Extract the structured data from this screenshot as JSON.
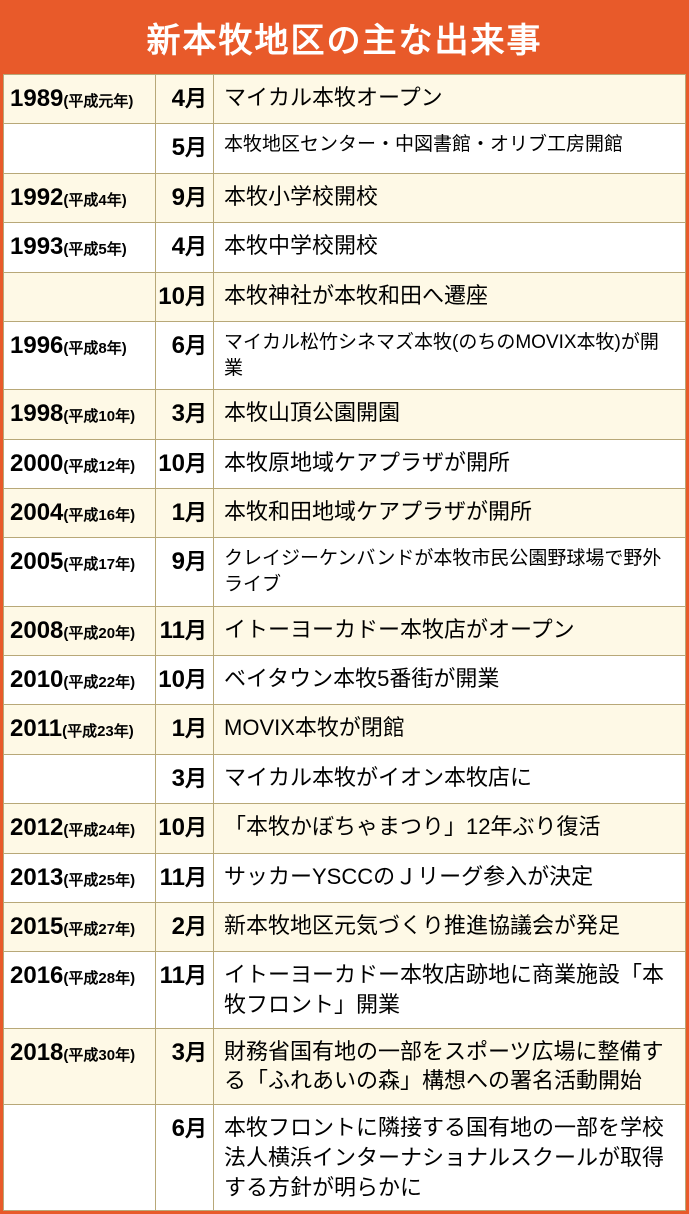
{
  "title": "新本牧地区の主な出来事",
  "colors": {
    "accent": "#e85a2a",
    "alt_row": "#fef9e6",
    "border": "#b8a878",
    "white": "#ffffff"
  },
  "rows": [
    {
      "western": "1989",
      "era": "(平成元年)",
      "month": "4",
      "event": "マイカル本牧オープン"
    },
    {
      "western": "",
      "era": "",
      "month": "5",
      "event": "本牧地区センター・中図書館・オリブ工房開館",
      "small": true
    },
    {
      "western": "1992",
      "era": "(平成4年)",
      "month": "9",
      "event": "本牧小学校開校"
    },
    {
      "western": "1993",
      "era": "(平成5年)",
      "month": "4",
      "event": "本牧中学校開校"
    },
    {
      "western": "",
      "era": "",
      "month": "10",
      "event": "本牧神社が本牧和田へ遷座"
    },
    {
      "western": "1996",
      "era": "(平成8年)",
      "month": "6",
      "event": "マイカル松竹シネマズ本牧(のちのMOVIX本牧)が開業",
      "small": true
    },
    {
      "western": "1998",
      "era": "(平成10年)",
      "month": "3",
      "event": "本牧山頂公園開園"
    },
    {
      "western": "2000",
      "era": "(平成12年)",
      "month": "10",
      "event": "本牧原地域ケアプラザが開所"
    },
    {
      "western": "2004",
      "era": "(平成16年)",
      "month": "1",
      "event": "本牧和田地域ケアプラザが開所"
    },
    {
      "western": "2005",
      "era": "(平成17年)",
      "month": "9",
      "event": "クレイジーケンバンドが本牧市民公園野球場で野外ライブ",
      "small": true
    },
    {
      "western": "2008",
      "era": "(平成20年)",
      "month": "11",
      "event": "イトーヨーカドー本牧店がオープン"
    },
    {
      "western": "2010",
      "era": "(平成22年)",
      "month": "10",
      "event": "ベイタウン本牧5番街が開業"
    },
    {
      "western": "2011",
      "era": "(平成23年)",
      "month": "1",
      "event": "MOVIX本牧が閉館"
    },
    {
      "western": "",
      "era": "",
      "month": "3",
      "event": "マイカル本牧がイオン本牧店に"
    },
    {
      "western": "2012",
      "era": "(平成24年)",
      "month": "10",
      "event": "「本牧かぼちゃまつり」12年ぶり復活"
    },
    {
      "western": "2013",
      "era": "(平成25年)",
      "month": "11",
      "event": "サッカーYSCCのＪリーグ参入が決定"
    },
    {
      "western": "2015",
      "era": "(平成27年)",
      "month": "2",
      "event": "新本牧地区元気づくり推進協議会が発足"
    },
    {
      "western": "2016",
      "era": "(平成28年)",
      "month": "11",
      "event": "イトーヨーカドー本牧店跡地に商業施設「本牧フロント」開業"
    },
    {
      "western": "2018",
      "era": "(平成30年)",
      "month": "3",
      "event": "財務省国有地の一部をスポーツ広場に整備する「ふれあいの森」構想への署名活動開始"
    },
    {
      "western": "",
      "era": "",
      "month": "6",
      "event": "本牧フロントに隣接する国有地の一部を学校法人横浜インターナショナルスクールが取得する方針が明らかに"
    }
  ],
  "month_suffix": "月"
}
